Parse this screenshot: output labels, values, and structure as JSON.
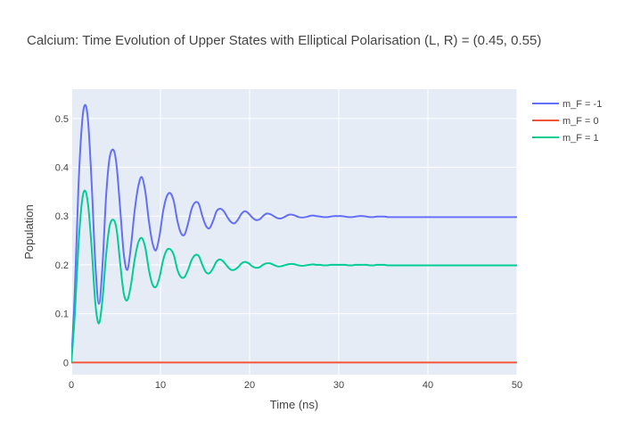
{
  "chart_data": {
    "type": "line",
    "title": "Calcium: Time Evolution of Upper States with Elliptical Polarisation (L, R) = (0.45, 0.55)",
    "xlabel": "Time (ns)",
    "ylabel": "Population",
    "xlim": [
      0,
      50
    ],
    "ylim": [
      -0.025,
      0.56
    ],
    "x_ticks": [
      0,
      10,
      20,
      30,
      40,
      50
    ],
    "y_ticks": [
      0,
      0.1,
      0.2,
      0.3,
      0.4,
      0.5
    ],
    "x_tick_labels": [
      "0",
      "10",
      "20",
      "30",
      "40",
      "50"
    ],
    "y_tick_labels": [
      "0",
      "0.1",
      "0.2",
      "0.3",
      "0.4",
      "0.5"
    ],
    "grid": true,
    "legend_position": "top-right",
    "background_color": "#e5ecf6",
    "series": [
      {
        "name": "m_F = -1",
        "color": "#636efa",
        "x": [
          0,
          0.4,
          0.8,
          1.2,
          1.55,
          1.9,
          2.3,
          2.7,
          3.1,
          3.5,
          3.9,
          4.3,
          4.75,
          5.1,
          5.5,
          5.9,
          6.3,
          6.7,
          7.1,
          7.5,
          7.9,
          8.3,
          8.7,
          9.1,
          9.5,
          9.9,
          10.3,
          10.7,
          11.1,
          11.5,
          11.9,
          12.3,
          12.7,
          13.1,
          13.5,
          13.9,
          14.3,
          14.7,
          15.1,
          15.5,
          15.9,
          16.3,
          16.7,
          17.1,
          17.5,
          17.9,
          18.3,
          18.7,
          19.1,
          19.5,
          19.9,
          20.3,
          20.7,
          21.1,
          21.5,
          21.9,
          22.3,
          22.7,
          23.1,
          23.5,
          23.9,
          24.3,
          24.7,
          25.1,
          25.5,
          25.9,
          26.3,
          26.7,
          27.1,
          27.5,
          27.9,
          28.3,
          28.7,
          29.1,
          29.5,
          29.9,
          30.3,
          30.7,
          31.1,
          31.5,
          31.9,
          32.3,
          32.7,
          33.1,
          33.5,
          33.9,
          34.3,
          34.7,
          35.1,
          35.5,
          35.9,
          36.3,
          36.7,
          37.1,
          37.5,
          38,
          39,
          40,
          42,
          44,
          46,
          48,
          50
        ],
        "y": [
          0,
          0.15,
          0.36,
          0.49,
          0.528,
          0.49,
          0.36,
          0.2,
          0.12,
          0.2,
          0.34,
          0.42,
          0.435,
          0.4,
          0.31,
          0.22,
          0.19,
          0.24,
          0.31,
          0.36,
          0.38,
          0.35,
          0.29,
          0.245,
          0.23,
          0.26,
          0.31,
          0.34,
          0.347,
          0.33,
          0.29,
          0.265,
          0.262,
          0.285,
          0.315,
          0.328,
          0.325,
          0.3,
          0.28,
          0.275,
          0.29,
          0.31,
          0.315,
          0.31,
          0.298,
          0.288,
          0.285,
          0.293,
          0.305,
          0.31,
          0.305,
          0.297,
          0.292,
          0.293,
          0.3,
          0.305,
          0.304,
          0.3,
          0.296,
          0.295,
          0.298,
          0.302,
          0.303,
          0.301,
          0.298,
          0.297,
          0.298,
          0.3,
          0.301,
          0.3,
          0.299,
          0.298,
          0.298,
          0.299,
          0.3,
          0.3,
          0.3,
          0.299,
          0.298,
          0.298,
          0.299,
          0.3,
          0.3,
          0.299,
          0.298,
          0.298,
          0.299,
          0.299,
          0.299,
          0.298,
          0.298,
          0.298,
          0.298,
          0.298,
          0.298,
          0.298,
          0.298,
          0.298,
          0.298,
          0.298,
          0.298,
          0.298,
          0.298
        ]
      },
      {
        "name": "m_F = 0",
        "color": "#ef553b",
        "x": [
          0,
          10,
          20,
          30,
          40,
          50
        ],
        "y": [
          0,
          0,
          0,
          0,
          0,
          0
        ]
      },
      {
        "name": "m_F = 1",
        "color": "#00cc96",
        "x": [
          0,
          0.4,
          0.8,
          1.2,
          1.55,
          1.9,
          2.3,
          2.7,
          3.1,
          3.5,
          3.9,
          4.3,
          4.75,
          5.1,
          5.5,
          5.9,
          6.3,
          6.7,
          7.1,
          7.5,
          7.9,
          8.3,
          8.7,
          9.1,
          9.5,
          9.9,
          10.3,
          10.7,
          11.1,
          11.5,
          11.9,
          12.3,
          12.7,
          13.1,
          13.5,
          13.9,
          14.3,
          14.7,
          15.1,
          15.5,
          15.9,
          16.3,
          16.7,
          17.1,
          17.5,
          17.9,
          18.3,
          18.7,
          19.1,
          19.5,
          19.9,
          20.3,
          20.7,
          21.1,
          21.5,
          21.9,
          22.3,
          22.7,
          23.1,
          23.5,
          23.9,
          24.3,
          24.7,
          25.1,
          25.5,
          25.9,
          26.3,
          26.7,
          27.1,
          27.5,
          27.9,
          28.3,
          28.7,
          29.1,
          29.5,
          29.9,
          30.3,
          30.7,
          31.1,
          31.5,
          31.9,
          32.3,
          32.7,
          33.1,
          33.5,
          33.9,
          34.3,
          34.7,
          35.1,
          35.5,
          35.9,
          36.3,
          36.7,
          37.1,
          37.5,
          38,
          39,
          40,
          42,
          44,
          46,
          48,
          50
        ],
        "y": [
          0,
          0.1,
          0.24,
          0.33,
          0.352,
          0.32,
          0.23,
          0.12,
          0.08,
          0.13,
          0.22,
          0.28,
          0.292,
          0.27,
          0.2,
          0.14,
          0.128,
          0.16,
          0.21,
          0.245,
          0.255,
          0.235,
          0.19,
          0.16,
          0.155,
          0.175,
          0.21,
          0.23,
          0.232,
          0.22,
          0.19,
          0.175,
          0.175,
          0.19,
          0.21,
          0.22,
          0.218,
          0.2,
          0.185,
          0.183,
          0.193,
          0.207,
          0.211,
          0.206,
          0.197,
          0.19,
          0.19,
          0.195,
          0.203,
          0.206,
          0.203,
          0.197,
          0.194,
          0.195,
          0.2,
          0.203,
          0.203,
          0.2,
          0.197,
          0.197,
          0.199,
          0.201,
          0.202,
          0.201,
          0.199,
          0.198,
          0.199,
          0.2,
          0.201,
          0.2,
          0.2,
          0.199,
          0.199,
          0.2,
          0.2,
          0.2,
          0.2,
          0.2,
          0.199,
          0.199,
          0.2,
          0.2,
          0.2,
          0.2,
          0.199,
          0.199,
          0.2,
          0.2,
          0.2,
          0.199,
          0.199,
          0.199,
          0.199,
          0.199,
          0.199,
          0.199,
          0.199,
          0.199,
          0.199,
          0.199,
          0.199,
          0.199,
          0.199
        ]
      }
    ]
  }
}
